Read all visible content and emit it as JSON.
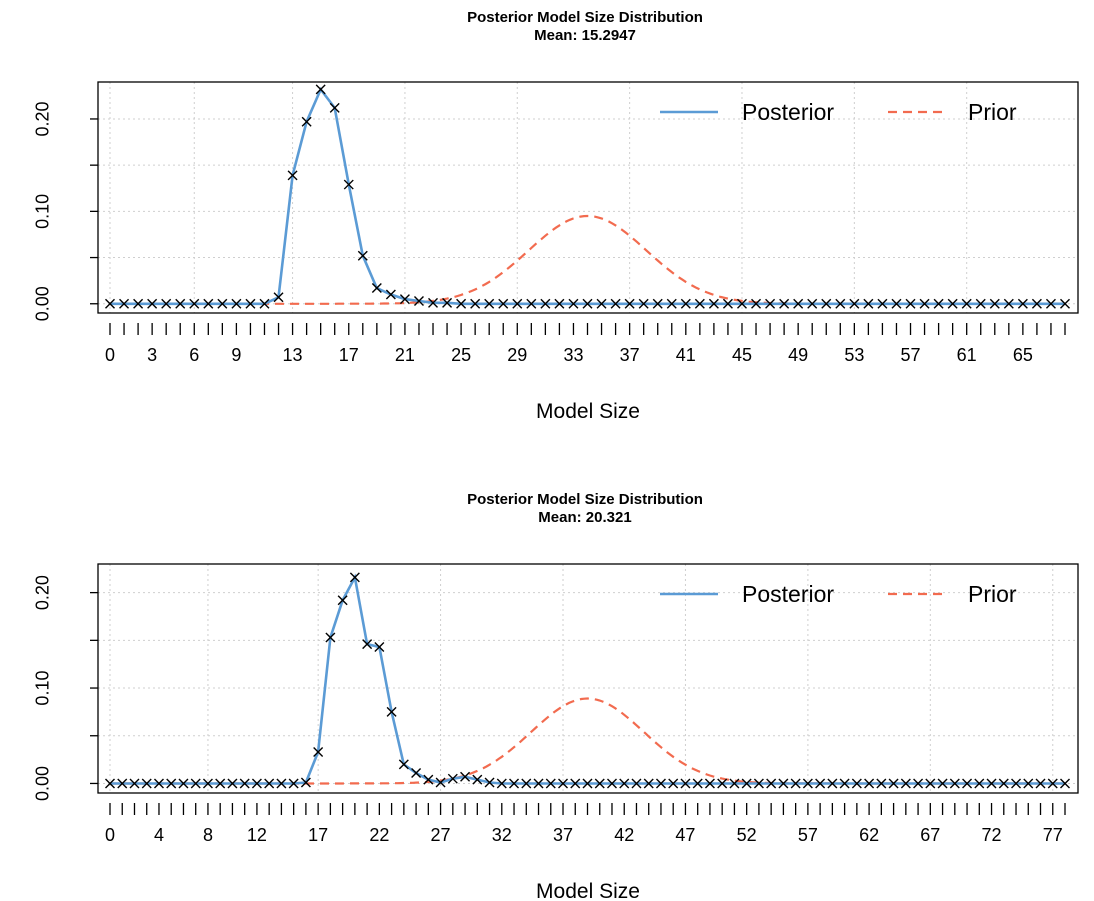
{
  "chart_data": [
    {
      "type": "line",
      "title": "Posterior Model Size Distribution",
      "subtitle": "Mean: 15.2947",
      "xlabel": "Model Size",
      "ylabel": "",
      "x_range": [
        0,
        68
      ],
      "ylim": [
        -0.01,
        0.24
      ],
      "y_ticks": [
        0.0,
        0.05,
        0.1,
        0.15,
        0.2
      ],
      "y_tick_labels": [
        "0.00",
        "",
        "0.10",
        "",
        "0.20"
      ],
      "x_tick_labels": [
        "0",
        "3",
        "6",
        "9",
        "13",
        "17",
        "21",
        "25",
        "29",
        "33",
        "37",
        "41",
        "45",
        "49",
        "53",
        "57",
        "61",
        "65"
      ],
      "x_tick_label_values": [
        0,
        3,
        6,
        9,
        13,
        17,
        21,
        25,
        29,
        33,
        37,
        41,
        45,
        49,
        53,
        57,
        61,
        65
      ],
      "grid": true,
      "legend_position": "top-right",
      "legend": [
        "Posterior",
        "Prior"
      ],
      "colors": {
        "posterior": "#5B9BD5",
        "prior": "#F26B4F",
        "points": "#000000"
      },
      "series": [
        {
          "name": "Posterior",
          "values": [
            0,
            0,
            0,
            0,
            0,
            0,
            0,
            0,
            0,
            0,
            0,
            0,
            0.007,
            0.139,
            0.197,
            0.232,
            0.212,
            0.129,
            0.052,
            0.017,
            0.01,
            0.005,
            0.003,
            0.001,
            0.001,
            0,
            0,
            0,
            0,
            0,
            0,
            0,
            0,
            0,
            0,
            0,
            0,
            0,
            0,
            0,
            0,
            0,
            0,
            0,
            0,
            0,
            0,
            0,
            0,
            0,
            0,
            0,
            0,
            0,
            0,
            0,
            0,
            0,
            0,
            0,
            0,
            0,
            0,
            0,
            0,
            0,
            0,
            0,
            0
          ]
        },
        {
          "name": "Prior",
          "mean": 34,
          "sd": 4.2,
          "peak": 0.095
        }
      ]
    },
    {
      "type": "line",
      "title": "Posterior Model Size Distribution",
      "subtitle": "Mean: 20.321",
      "xlabel": "Model Size",
      "ylabel": "",
      "x_range": [
        0,
        78
      ],
      "ylim": [
        -0.01,
        0.23
      ],
      "y_ticks": [
        0.0,
        0.05,
        0.1,
        0.15,
        0.2
      ],
      "y_tick_labels": [
        "0.00",
        "",
        "0.10",
        "",
        "0.20"
      ],
      "x_tick_labels": [
        "0",
        "4",
        "8",
        "12",
        "17",
        "22",
        "27",
        "32",
        "37",
        "42",
        "47",
        "52",
        "57",
        "62",
        "67",
        "72",
        "77"
      ],
      "x_tick_label_values": [
        0,
        4,
        8,
        12,
        17,
        22,
        27,
        32,
        37,
        42,
        47,
        52,
        57,
        62,
        67,
        72,
        77
      ],
      "grid": true,
      "legend_position": "top-right",
      "legend": [
        "Posterior",
        "Prior"
      ],
      "colors": {
        "posterior": "#5B9BD5",
        "prior": "#F26B4F",
        "points": "#000000"
      },
      "series": [
        {
          "name": "Posterior",
          "values": [
            0,
            0,
            0,
            0,
            0,
            0,
            0,
            0,
            0,
            0,
            0,
            0,
            0,
            0,
            0,
            0,
            0.001,
            0.033,
            0.153,
            0.192,
            0.216,
            0.146,
            0.143,
            0.075,
            0.02,
            0.011,
            0.004,
            0.001,
            0.005,
            0.007,
            0.004,
            0.001,
            0,
            0,
            0,
            0,
            0,
            0,
            0,
            0,
            0,
            0,
            0,
            0,
            0,
            0,
            0,
            0,
            0,
            0,
            0,
            0,
            0,
            0,
            0,
            0,
            0,
            0,
            0,
            0,
            0,
            0,
            0,
            0,
            0,
            0,
            0,
            0,
            0,
            0,
            0,
            0,
            0,
            0,
            0,
            0,
            0,
            0,
            0
          ]
        },
        {
          "name": "Prior",
          "mean": 39,
          "sd": 4.6,
          "peak": 0.089
        }
      ]
    }
  ]
}
